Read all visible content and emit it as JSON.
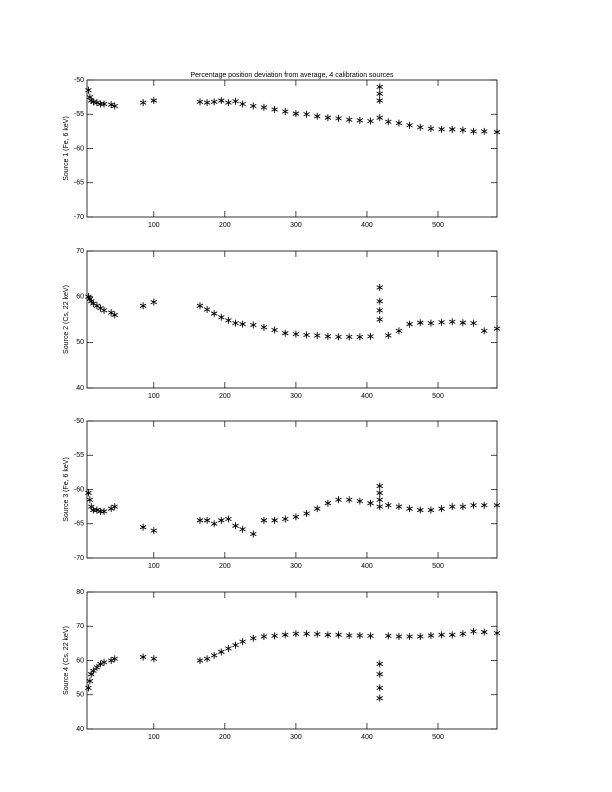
{
  "chart_data": [
    {
      "type": "scatter",
      "title": "Percentage position deviation from average, 4 calibration sources",
      "y_label": "Source 1 (Fe, 6 keV)",
      "x": [
        8,
        10,
        12,
        15,
        20,
        25,
        30,
        40,
        45,
        85,
        100,
        165,
        175,
        185,
        195,
        205,
        215,
        225,
        240,
        255,
        270,
        285,
        300,
        315,
        330,
        345,
        360,
        375,
        390,
        405,
        418,
        418,
        418,
        418,
        430,
        445,
        460,
        475,
        490,
        505,
        520,
        535,
        550,
        565,
        583
      ],
      "values": [
        -51.5,
        -52.5,
        -53,
        -53.2,
        -53.3,
        -53.5,
        -53.5,
        -53.6,
        -53.8,
        -53.3,
        -53,
        -53.2,
        -53.3,
        -53.2,
        -53,
        -53.3,
        -53.1,
        -53.5,
        -53.8,
        -54,
        -54.3,
        -54.6,
        -54.9,
        -55,
        -55.3,
        -55.5,
        -55.6,
        -55.8,
        -55.9,
        -56,
        -51,
        -52,
        -53,
        -55.5,
        -56.1,
        -56.3,
        -56.6,
        -56.9,
        -57.1,
        -57.2,
        -57.2,
        -57.3,
        -57.5,
        -57.5,
        -57.6
      ],
      "color": "#000000",
      "xlim": [
        6,
        583
      ],
      "xticks": [
        100,
        200,
        300,
        400,
        500
      ],
      "ylim": [
        -70,
        -50
      ],
      "yticks": [
        -70,
        -65,
        -60,
        -55,
        -50
      ]
    },
    {
      "type": "scatter",
      "y_label": "Source 2 (Cs, 22 keV)",
      "x": [
        8,
        10,
        12,
        15,
        20,
        25,
        30,
        40,
        45,
        85,
        100,
        165,
        175,
        185,
        195,
        205,
        215,
        225,
        240,
        255,
        270,
        285,
        300,
        315,
        330,
        345,
        360,
        375,
        390,
        405,
        418,
        418,
        418,
        418,
        430,
        445,
        460,
        475,
        490,
        505,
        520,
        535,
        550,
        565,
        583
      ],
      "values": [
        60,
        59.5,
        59,
        58.5,
        58,
        57.5,
        57,
        56.5,
        56,
        58,
        58.8,
        58,
        57.2,
        56.3,
        55.5,
        54.8,
        54.2,
        54,
        53.8,
        53.3,
        52.7,
        52,
        51.8,
        51.6,
        51.5,
        51.3,
        51.2,
        51.2,
        51.2,
        51.3,
        62,
        59,
        57,
        55,
        51.5,
        52.5,
        54,
        54.3,
        54.2,
        54.4,
        54.5,
        54.3,
        54.2,
        52.5,
        53
      ],
      "color": "#000000",
      "xlim": [
        6,
        583
      ],
      "xticks": [
        100,
        200,
        300,
        400,
        500
      ],
      "ylim": [
        40,
        70
      ],
      "yticks": [
        40,
        50,
        60,
        70
      ]
    },
    {
      "type": "scatter",
      "y_label": "Source 3 (Fe, 6 keV)",
      "x": [
        8,
        10,
        12,
        15,
        20,
        25,
        30,
        40,
        45,
        85,
        100,
        165,
        175,
        185,
        195,
        205,
        215,
        225,
        240,
        255,
        270,
        285,
        300,
        315,
        330,
        345,
        360,
        375,
        390,
        405,
        418,
        418,
        418,
        418,
        430,
        445,
        460,
        475,
        490,
        505,
        520,
        535,
        550,
        565,
        583
      ],
      "values": [
        -60.5,
        -61.5,
        -62.5,
        -63,
        -63,
        -63.2,
        -63.2,
        -62.8,
        -62.5,
        -65.5,
        -66,
        -64.5,
        -64.5,
        -65,
        -64.5,
        -64.3,
        -65.3,
        -65.8,
        -66.5,
        -64.5,
        -64.5,
        -64.3,
        -64,
        -63.5,
        -62.8,
        -62,
        -61.5,
        -61.5,
        -61.7,
        -62,
        -59.5,
        -60.5,
        -61.5,
        -62.5,
        -62.3,
        -62.5,
        -62.8,
        -63,
        -63,
        -62.8,
        -62.5,
        -62.5,
        -62.3,
        -62.3,
        -62.3
      ],
      "color": "#000000",
      "xlim": [
        6,
        583
      ],
      "xticks": [
        100,
        200,
        300,
        400,
        500
      ],
      "ylim": [
        -70,
        -50
      ],
      "yticks": [
        -70,
        -65,
        -60,
        -55,
        -50
      ]
    },
    {
      "type": "scatter",
      "y_label": "Source 4 (Cs, 22 keV)",
      "x": [
        8,
        10,
        12,
        15,
        20,
        25,
        30,
        40,
        45,
        85,
        100,
        165,
        175,
        185,
        195,
        205,
        215,
        225,
        240,
        255,
        270,
        285,
        300,
        315,
        330,
        345,
        360,
        375,
        390,
        405,
        418,
        418,
        418,
        418,
        430,
        445,
        460,
        475,
        490,
        505,
        520,
        535,
        550,
        565,
        583
      ],
      "values": [
        52,
        54,
        56,
        57,
        58,
        59,
        59.5,
        60,
        60.5,
        61,
        60.5,
        60,
        60.5,
        61.5,
        62.5,
        63.5,
        64.5,
        65.5,
        66.5,
        67,
        67.2,
        67.5,
        67.8,
        67.8,
        67.7,
        67.5,
        67.5,
        67.3,
        67.3,
        67.2,
        59,
        56,
        52,
        49,
        67.2,
        67,
        67,
        67,
        67.3,
        67.5,
        67.5,
        67.8,
        68.5,
        68.3,
        68
      ],
      "color": "#000000",
      "xlim": [
        6,
        583
      ],
      "xticks": [
        100,
        200,
        300,
        400,
        500
      ],
      "ylim": [
        40,
        80
      ],
      "yticks": [
        40,
        50,
        60,
        70,
        80
      ]
    }
  ]
}
